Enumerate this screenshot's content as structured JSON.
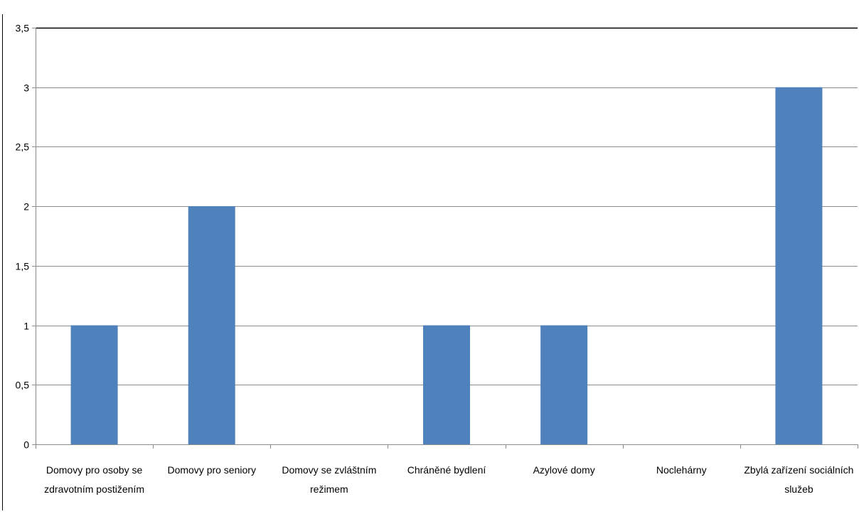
{
  "chart_data": {
    "type": "bar",
    "categories": [
      [
        "Domovy pro osoby se",
        "zdravotním postižením"
      ],
      [
        "Domovy pro seniory"
      ],
      [
        "Domovy se zvláštním",
        "režimem"
      ],
      [
        "Chráněné bydlení"
      ],
      [
        "Azylové domy"
      ],
      [
        "Noclehárny"
      ],
      [
        "Zbylá zařízení sociálních",
        "služeb"
      ]
    ],
    "category_labels": [
      "Domovy pro osoby se zdravotním postižením",
      "Domovy pro seniory",
      "Domovy se zvláštním režimem",
      "Chráněné bydlení",
      "Azylové domy",
      "Noclehárny",
      "Zbylá zařízení sociálních služeb"
    ],
    "values": [
      1,
      2,
      0,
      1,
      1,
      0,
      3
    ],
    "ylim": [
      0,
      3.5
    ],
    "yticks": [
      0,
      0.5,
      1,
      1.5,
      2,
      2.5,
      3,
      3.5
    ],
    "ytick_labels": [
      "0",
      "0,5",
      "1",
      "1,5",
      "2",
      "2,5",
      "3",
      "3,5"
    ],
    "title": "",
    "xlabel": "",
    "ylabel": "",
    "grid": true,
    "legend": "none",
    "bar_color": "#4f81bd",
    "grid_color": "#8c8c8c"
  }
}
